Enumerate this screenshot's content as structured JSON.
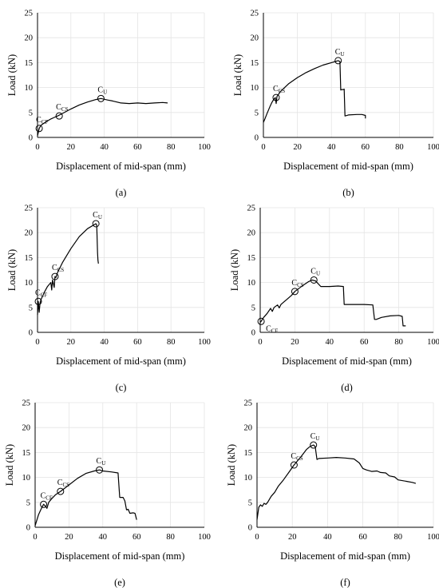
{
  "chart_data": [
    {
      "type": "line",
      "panel_label": "(a)",
      "xlabel": "Displacement of mid-span (mm)",
      "ylabel": "Load (kN)",
      "xlim": [
        0,
        100
      ],
      "ylim": [
        0,
        25
      ],
      "xticks": [
        "0",
        "20",
        "40",
        "60",
        "80",
        "100"
      ],
      "yticks": [
        "0",
        "5",
        "10",
        "15",
        "20",
        "25"
      ],
      "grid": true,
      "series": [
        {
          "x": [
            0,
            1,
            2,
            4,
            6,
            8,
            10,
            12,
            15,
            20,
            25,
            30,
            35,
            38,
            42,
            45,
            50,
            55,
            60,
            65,
            70,
            75,
            78
          ],
          "y": [
            0.3,
            1.8,
            2.4,
            2.9,
            3.3,
            3.7,
            4.0,
            4.3,
            4.8,
            5.7,
            6.5,
            7.1,
            7.6,
            7.8,
            7.5,
            7.3,
            6.9,
            6.8,
            6.9,
            6.8,
            6.9,
            7.0,
            6.9
          ]
        }
      ],
      "annotations": [
        {
          "label": "C",
          "sub": "CF",
          "x": 1,
          "y": 1.8
        },
        {
          "label": "C",
          "sub": "CS",
          "x": 13,
          "y": 4.3
        },
        {
          "label": "C",
          "sub": "U",
          "x": 38,
          "y": 7.8
        }
      ]
    },
    {
      "type": "line",
      "panel_label": "(b)",
      "xlabel": "Displacement of mid-span (mm)",
      "ylabel": "Load (kN)",
      "xlim": [
        0,
        100
      ],
      "ylim": [
        0,
        25
      ],
      "xticks": [
        "0",
        "20",
        "40",
        "60",
        "80",
        "100"
      ],
      "yticks": [
        "0",
        "5",
        "10",
        "15",
        "20",
        "25"
      ],
      "grid": true,
      "series": [
        {
          "x": [
            0,
            1,
            2,
            3,
            4,
            5,
            6,
            7,
            7.5,
            8,
            10,
            15,
            20,
            25,
            30,
            35,
            40,
            44,
            45,
            45.5,
            46,
            47,
            47.5,
            48,
            50,
            55,
            58,
            60,
            60
          ],
          "y": [
            3.0,
            3.8,
            4.7,
            5.5,
            6.3,
            7.0,
            7.6,
            8.0,
            6.8,
            8.2,
            9.2,
            10.8,
            12.0,
            13.0,
            13.8,
            14.5,
            15.0,
            15.4,
            15.2,
            9.5,
            9.6,
            9.6,
            9.7,
            4.3,
            4.5,
            4.6,
            4.6,
            4.4,
            3.8
          ]
        }
      ],
      "annotations": [
        {
          "label": "C",
          "sub": "CS",
          "x": 7.5,
          "y": 8.0
        },
        {
          "label": "C",
          "sub": "U",
          "x": 44,
          "y": 15.4
        }
      ]
    },
    {
      "type": "line",
      "panel_label": "(c)",
      "xlabel": "Displacement of mid-span (mm)",
      "ylabel": "Load (kN)",
      "xlim": [
        0,
        100
      ],
      "ylim": [
        0,
        25
      ],
      "xticks": [
        "0",
        "20",
        "40",
        "60",
        "80",
        "100"
      ],
      "yticks": [
        "0",
        "5",
        "10",
        "15",
        "20",
        "25"
      ],
      "grid": true,
      "series": [
        {
          "x": [
            0,
            0.5,
            1,
            1.5,
            2,
            4,
            6,
            8,
            8.5,
            9,
            10,
            10.5,
            11,
            12,
            15,
            20,
            25,
            30,
            35,
            35.5,
            36,
            36.2,
            36.5
          ],
          "y": [
            3.5,
            6.2,
            4.0,
            5.8,
            6.5,
            8.0,
            9.2,
            10.0,
            8.5,
            10.5,
            9.0,
            11.2,
            11.0,
            12.0,
            14.0,
            16.8,
            19.2,
            20.8,
            21.8,
            21.5,
            16.0,
            14.5,
            13.8
          ]
        }
      ],
      "annotations": [
        {
          "label": "C",
          "sub": "CF",
          "x": 0.5,
          "y": 6.2
        },
        {
          "label": "C",
          "sub": "CS",
          "x": 10.5,
          "y": 11.2
        },
        {
          "label": "C",
          "sub": "U",
          "x": 35,
          "y": 21.8
        }
      ]
    },
    {
      "type": "line",
      "panel_label": "(d)",
      "xlabel": "Displacement of mid-span (mm)",
      "ylabel": "Load (kN)",
      "xlim": [
        0,
        100
      ],
      "ylim": [
        0,
        25
      ],
      "xticks": [
        "0",
        "20",
        "40",
        "60",
        "80",
        "100"
      ],
      "yticks": [
        "0",
        "5",
        "10",
        "15",
        "20",
        "25"
      ],
      "grid": true,
      "series": [
        {
          "x": [
            0,
            0.5,
            2,
            4,
            6,
            7,
            8,
            10,
            11,
            12,
            15,
            18,
            20,
            25,
            28,
            30,
            32,
            35,
            40,
            45,
            48,
            48.5,
            55,
            60,
            65,
            66,
            67,
            70,
            75,
            80,
            82,
            82.5,
            84
          ],
          "y": [
            2.0,
            2.2,
            3.0,
            3.8,
            4.8,
            4.2,
            5.0,
            5.5,
            4.9,
            5.6,
            6.5,
            7.4,
            8.2,
            9.5,
            10.2,
            10.5,
            10.3,
            9.2,
            9.2,
            9.3,
            9.2,
            5.6,
            5.6,
            5.6,
            5.5,
            2.6,
            2.6,
            3.0,
            3.3,
            3.4,
            3.2,
            1.3,
            1.3
          ]
        }
      ],
      "annotations": [
        {
          "label": "C",
          "sub": "CF",
          "x": 0.5,
          "y": 2.2
        },
        {
          "label": "C",
          "sub": "CS",
          "x": 20,
          "y": 8.2
        },
        {
          "label": "C",
          "sub": "U",
          "x": 31,
          "y": 10.5
        }
      ]
    },
    {
      "type": "line",
      "panel_label": "(e)",
      "xlabel": "Displacement of mid-span (mm)",
      "ylabel": "Load (kN)",
      "xlim": [
        0,
        100
      ],
      "ylim": [
        0,
        25
      ],
      "xticks": [
        "0",
        "20",
        "40",
        "60",
        "80",
        "100"
      ],
      "yticks": [
        "0",
        "5",
        "10",
        "15",
        "20",
        "25"
      ],
      "grid": true,
      "series": [
        {
          "x": [
            0,
            2,
            4,
            5,
            6,
            7,
            8,
            10,
            12,
            15,
            20,
            25,
            30,
            35,
            38,
            40,
            45,
            49,
            50,
            52,
            53,
            54,
            55,
            56,
            58,
            59,
            60
          ],
          "y": [
            0.3,
            2.5,
            4.0,
            4.6,
            4.3,
            3.8,
            5.0,
            5.8,
            6.5,
            7.2,
            8.5,
            9.8,
            10.8,
            11.3,
            11.5,
            11.3,
            11.1,
            10.9,
            6.0,
            6.0,
            5.3,
            3.5,
            3.6,
            2.8,
            2.9,
            2.8,
            1.5
          ]
        }
      ],
      "annotations": [
        {
          "label": "C",
          "sub": "CF",
          "x": 5,
          "y": 4.6
        },
        {
          "label": "C",
          "sub": "CS",
          "x": 15,
          "y": 7.2
        },
        {
          "label": "C",
          "sub": "U",
          "x": 38,
          "y": 11.5
        }
      ]
    },
    {
      "type": "line",
      "panel_label": "(f)",
      "xlabel": "Displacement of mid-span (mm)",
      "ylabel": "Load (kN)",
      "xlim": [
        0,
        100
      ],
      "ylim": [
        0,
        25
      ],
      "xticks": [
        "0",
        "20",
        "40",
        "60",
        "80",
        "100"
      ],
      "yticks": [
        "0",
        "5",
        "10",
        "15",
        "20",
        "25"
      ],
      "grid": true,
      "series": [
        {
          "x": [
            0,
            1,
            2,
            3,
            4,
            5,
            6,
            8,
            10,
            12,
            15,
            18,
            21,
            25,
            28,
            30,
            32,
            33,
            34,
            35,
            40,
            45,
            50,
            55,
            58,
            60,
            62,
            65,
            68,
            70,
            73,
            75,
            78,
            80,
            85,
            88,
            90
          ],
          "y": [
            1.5,
            4.0,
            4.5,
            4.2,
            4.8,
            4.6,
            5.0,
            6.2,
            7.0,
            8.2,
            9.5,
            11.0,
            12.5,
            14.2,
            15.6,
            16.2,
            16.5,
            16.2,
            13.6,
            13.8,
            13.9,
            14.0,
            13.9,
            13.7,
            12.9,
            11.8,
            11.5,
            11.2,
            11.3,
            11.0,
            10.9,
            10.3,
            10.1,
            9.5,
            9.2,
            9.0,
            8.8
          ]
        }
      ],
      "annotations": [
        {
          "label": "C",
          "sub": "CS",
          "x": 21,
          "y": 12.5
        },
        {
          "label": "C",
          "sub": "U",
          "x": 32,
          "y": 16.5
        }
      ]
    }
  ]
}
